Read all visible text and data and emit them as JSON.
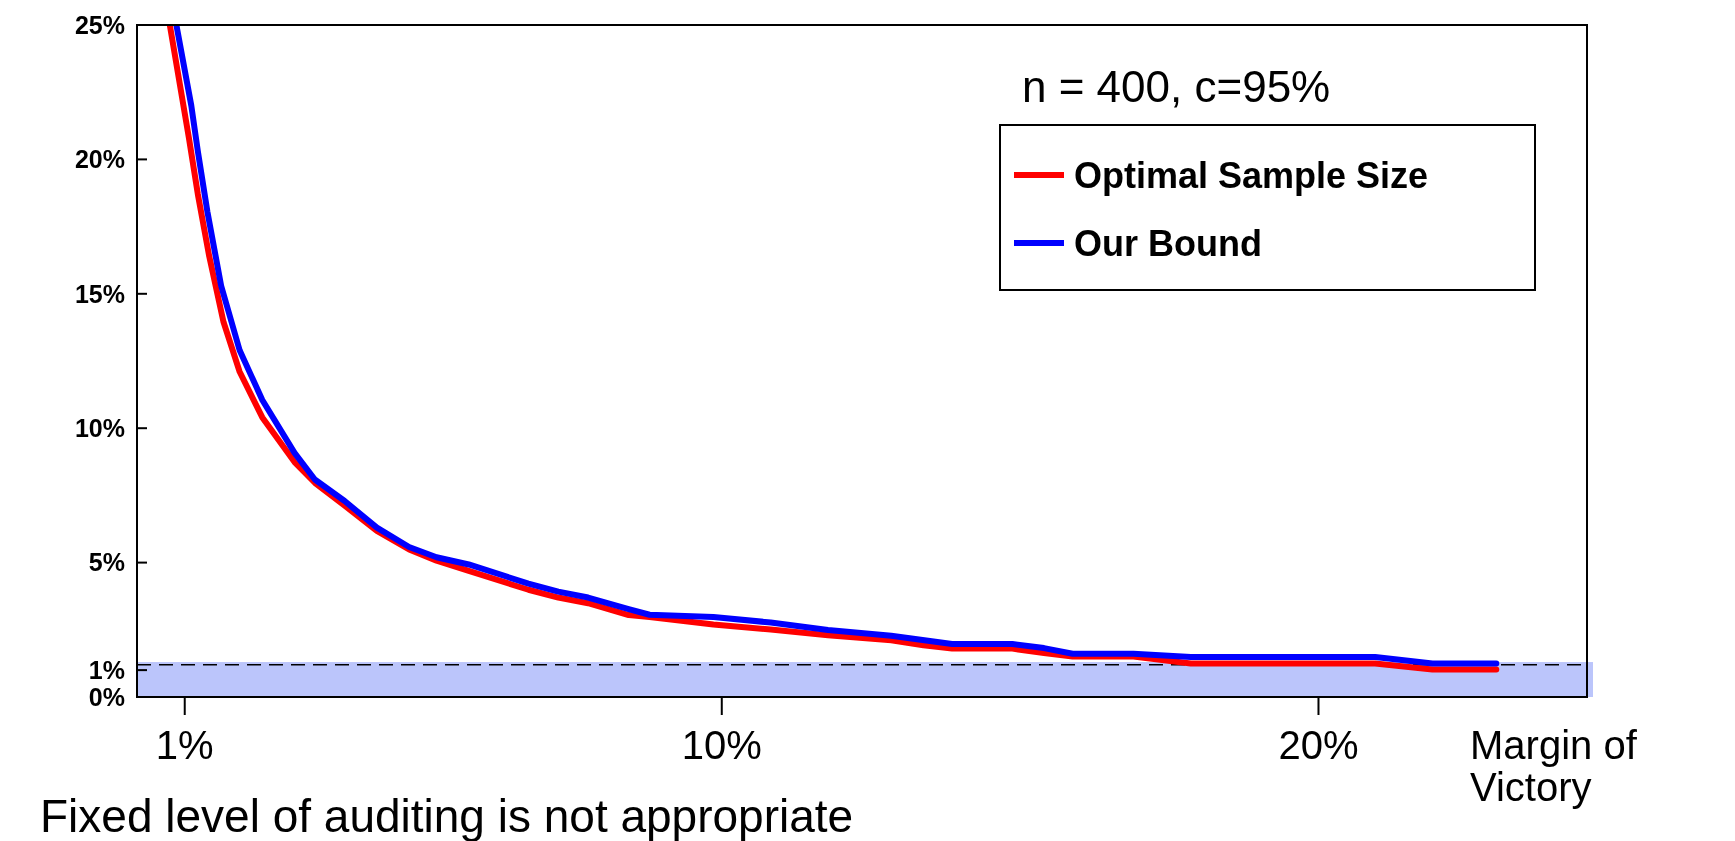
{
  "chart_data": {
    "type": "line",
    "xlabel": "Margin of Victory",
    "xlim": [
      0.2,
      24.5
    ],
    "xticks": [
      {
        "value": 1,
        "label": "1%"
      },
      {
        "value": 10,
        "label": "10%"
      },
      {
        "value": 20,
        "label": "20%"
      }
    ],
    "ylim": [
      0,
      25
    ],
    "yticks": [
      {
        "value": 0,
        "label": "0%"
      },
      {
        "value": 1,
        "label": "1%"
      },
      {
        "value": 5,
        "label": "5%"
      },
      {
        "value": 10,
        "label": "10%"
      },
      {
        "value": 15,
        "label": "15%"
      },
      {
        "value": 20,
        "label": "20%"
      },
      {
        "value": 25,
        "label": "25%"
      }
    ],
    "series": [
      {
        "name": "Optimal Sample Size",
        "color": "#ff0000",
        "x": [
          0.75,
          1.07,
          1.22,
          1.41,
          1.65,
          1.92,
          2.3,
          2.84,
          3.18,
          3.68,
          4.22,
          4.76,
          5.22,
          5.76,
          6.76,
          7.26,
          7.76,
          8.44,
          8.79,
          9.86,
          10.82,
          11.78,
          12.84,
          13.38,
          13.86,
          14.87,
          15.4,
          15.88,
          16.9,
          17.86,
          18.93,
          20.95,
          21.91,
          22.98
        ],
        "values": [
          25,
          20.8,
          18.7,
          16.4,
          13.95,
          12.1,
          10.4,
          8.74,
          7.97,
          7.12,
          6.18,
          5.49,
          5.07,
          4.69,
          3.99,
          3.7,
          3.49,
          3.05,
          2.98,
          2.7,
          2.51,
          2.3,
          2.11,
          1.92,
          1.8,
          1.8,
          1.64,
          1.51,
          1.51,
          1.25,
          1.25,
          1.25,
          1.02,
          1.02
        ]
      },
      {
        "name": "Our Bound",
        "color": "#0000ff",
        "x": [
          0.86,
          1.11,
          1.22,
          1.38,
          1.61,
          1.92,
          2.3,
          2.84,
          3.18,
          3.68,
          4.22,
          4.76,
          5.22,
          5.76,
          6.76,
          7.26,
          7.76,
          8.44,
          8.79,
          9.86,
          10.82,
          11.78,
          12.84,
          13.86,
          14.87,
          15.4,
          15.88,
          16.9,
          17.86,
          20.95,
          21.91,
          22.98
        ],
        "values": [
          25,
          22,
          20.3,
          18.05,
          15.3,
          12.9,
          11.05,
          9.08,
          8.09,
          7.29,
          6.3,
          5.58,
          5.2,
          4.93,
          4.22,
          3.92,
          3.7,
          3.27,
          3.06,
          2.98,
          2.77,
          2.49,
          2.28,
          1.97,
          1.97,
          1.82,
          1.61,
          1.61,
          1.49,
          1.49,
          1.25,
          1.25
        ]
      }
    ],
    "bands": [
      {
        "axis": "y",
        "from": 0,
        "to": 1.3,
        "color": "#bbc5fb"
      }
    ],
    "ref_lines": [
      {
        "axis": "y",
        "value": 1.2,
        "line_style": "dashed",
        "color": "#000000"
      }
    ],
    "annotations": [
      "n = 400, c=95%",
      "Fixed level of auditing is not appropriate"
    ],
    "legend": "top right",
    "marker": "none",
    "line_style": "solid",
    "grid": false
  }
}
